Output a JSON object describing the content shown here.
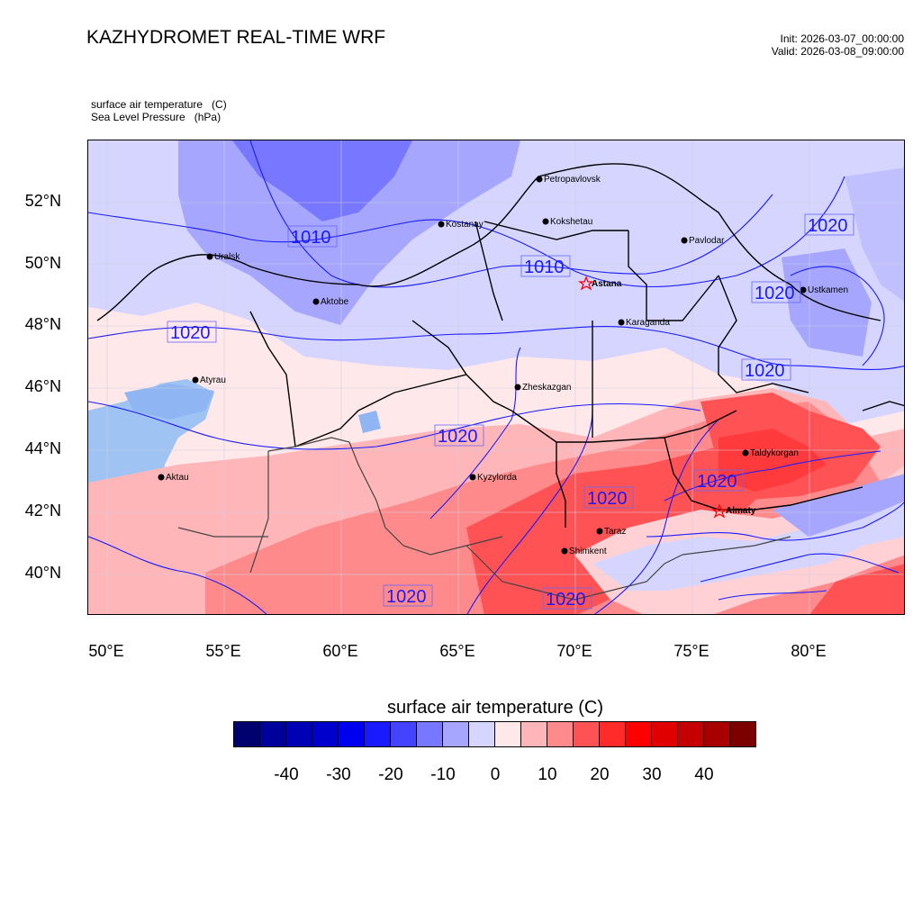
{
  "header": {
    "title": "KAZHYDROMET REAL-TIME WRF",
    "init": "Init: 2026-03-07_00:00:00",
    "valid": "Valid: 2026-03-08_09:00:00"
  },
  "fields": {
    "primary": "surface air temperature   (C)",
    "secondary": "Sea Level Pressure   (hPa)"
  },
  "axes": {
    "lat_labels": [
      "52°N",
      "50°N",
      "48°N",
      "46°N",
      "44°N",
      "42°N",
      "40°N"
    ],
    "lon_labels": [
      "50°E",
      "55°E",
      "60°E",
      "65°E",
      "70°E",
      "75°E",
      "80°E"
    ]
  },
  "cities": [
    {
      "name": "Petropavlovsk",
      "marker": "dot"
    },
    {
      "name": "Kostanay",
      "marker": "dot"
    },
    {
      "name": "Kokshetau",
      "marker": "dot"
    },
    {
      "name": "Pavlodar",
      "marker": "dot"
    },
    {
      "name": "Uralsk",
      "marker": "dot"
    },
    {
      "name": "Astana",
      "marker": "star"
    },
    {
      "name": "Ustkamen",
      "marker": "dot"
    },
    {
      "name": "Aktobe",
      "marker": "dot"
    },
    {
      "name": "Karaganda",
      "marker": "dot"
    },
    {
      "name": "Atyrau",
      "marker": "dot"
    },
    {
      "name": "Zheskazgan",
      "marker": "dot"
    },
    {
      "name": "Taldykorgan",
      "marker": "dot"
    },
    {
      "name": "Aktau",
      "marker": "dot"
    },
    {
      "name": "Kyzylorda",
      "marker": "dot"
    },
    {
      "name": "Almaty",
      "marker": "star"
    },
    {
      "name": "Taraz",
      "marker": "dot"
    },
    {
      "name": "Shimkent",
      "marker": "dot"
    }
  ],
  "slp_contour_labels": [
    "1010",
    "1010",
    "1020",
    "1020",
    "1020",
    "1020",
    "1020",
    "1020",
    "1020",
    "1020",
    "1020"
  ],
  "colorbar": {
    "title": "surface air temperature  (C)",
    "tick_labels": [
      "-40",
      "-30",
      "-20",
      "-10",
      "0",
      "10",
      "20",
      "30",
      "40"
    ],
    "colors": [
      "#00006e",
      "#00009b",
      "#0000b4",
      "#0000cd",
      "#0000f0",
      "#1a1aff",
      "#4444ff",
      "#7777ff",
      "#a6a6ff",
      "#d5d5ff",
      "#ffe8ea",
      "#ffb6b8",
      "#ff8a8c",
      "#ff5254",
      "#ff2a2a",
      "#ff0000",
      "#e00000",
      "#c40000",
      "#a80000",
      "#7d0000"
    ]
  },
  "colors": {
    "slp_contour": "#1a1aff",
    "border_major": "#000000",
    "border_minor": "#333333",
    "city_star": "#ff0000"
  }
}
